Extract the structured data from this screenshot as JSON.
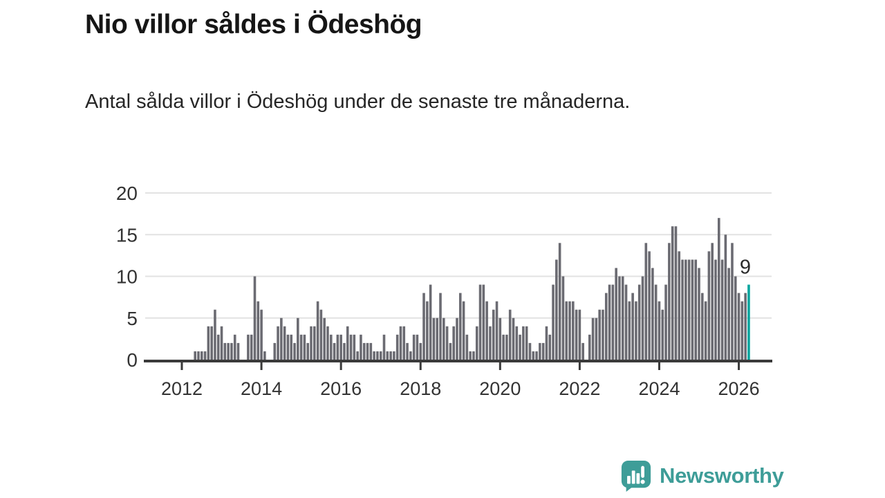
{
  "header": {
    "title": "Nio villor såldes i Ödeshög",
    "subtitle": "Antal sålda villor i Ödeshög under de senaste tre månaderna."
  },
  "chart_data": {
    "type": "bar",
    "title": "Nio villor såldes i Ödeshög",
    "subtitle": "Antal sålda villor i Ödeshög under de senaste tre månaderna.",
    "unit_period": "monthly rolling 3-month count",
    "start_month": "2012-05",
    "values": [
      1,
      1,
      1,
      1,
      4,
      4,
      6,
      3,
      4,
      2,
      2,
      2,
      3,
      2,
      0,
      0,
      3,
      3,
      10,
      7,
      6,
      1,
      0,
      0,
      2,
      4,
      5,
      4,
      3,
      3,
      2,
      5,
      3,
      3,
      2,
      4,
      4,
      7,
      6,
      5,
      4,
      3,
      2,
      3,
      3,
      2,
      4,
      3,
      3,
      1,
      3,
      2,
      2,
      2,
      1,
      1,
      1,
      3,
      1,
      1,
      1,
      3,
      4,
      4,
      2,
      1,
      3,
      3,
      2,
      8,
      7,
      9,
      5,
      5,
      8,
      5,
      4,
      2,
      4,
      5,
      8,
      7,
      3,
      1,
      1,
      4,
      9,
      9,
      7,
      4,
      6,
      7,
      5,
      3,
      3,
      6,
      5,
      4,
      3,
      4,
      4,
      2,
      1,
      1,
      2,
      2,
      4,
      3,
      9,
      12,
      14,
      10,
      7,
      7,
      7,
      6,
      6,
      2,
      0,
      3,
      5,
      5,
      6,
      6,
      8,
      9,
      9,
      11,
      10,
      10,
      9,
      7,
      8,
      7,
      9,
      10,
      14,
      13,
      11,
      9,
      7,
      6,
      9,
      14,
      16,
      16,
      13,
      12,
      12,
      12,
      12,
      12,
      11,
      8,
      7,
      13,
      14,
      12,
      17,
      12,
      15,
      11,
      14,
      10,
      8,
      7,
      8,
      9
    ],
    "last_value": 9,
    "annotation": {
      "text": "9",
      "applies_to": "last-bar"
    },
    "y_ticks": [
      0,
      5,
      10,
      15,
      20
    ],
    "x_ticks": [
      2012,
      2014,
      2016,
      2018,
      2020,
      2022,
      2024,
      2026
    ],
    "ylim": [
      0,
      20
    ],
    "grid": true,
    "legend": "none",
    "bar_color": "#6b6b72",
    "highlight_color": "#00a59e",
    "axis_color": "#3a3a3a",
    "grid_color": "#e2e2e2",
    "tick_label_color": "#333333"
  },
  "logo": {
    "text": "Newsworthy",
    "color": "#3e9d98"
  }
}
